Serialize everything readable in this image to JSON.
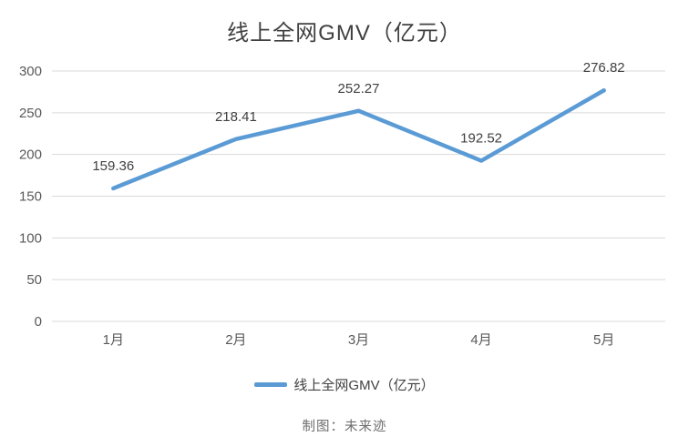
{
  "chart_data": {
    "type": "line",
    "title": "线上全网GMV（亿元）",
    "categories": [
      "1月",
      "2月",
      "3月",
      "4月",
      "5月"
    ],
    "series": [
      {
        "name": "线上全网GMV（亿元）",
        "values": [
          159.36,
          218.41,
          252.27,
          192.52,
          276.82
        ],
        "data_labels": [
          "159.36",
          "218.41",
          "252.27",
          "192.52",
          "276.82"
        ]
      }
    ],
    "ylim": [
      0,
      300
    ],
    "ytick_step": 50,
    "ytick_labels": [
      "0",
      "50",
      "100",
      "150",
      "200",
      "250",
      "300"
    ],
    "grid": true,
    "legend_position": "bottom",
    "colors": {
      "line": "#5B9BD5",
      "gridline": "#D9D9D9",
      "axis_text": "#595959",
      "data_label_text": "#404040",
      "title_text": "#404040",
      "credit_text": "#6e6e6e"
    }
  },
  "credit": "制图：未来迹"
}
